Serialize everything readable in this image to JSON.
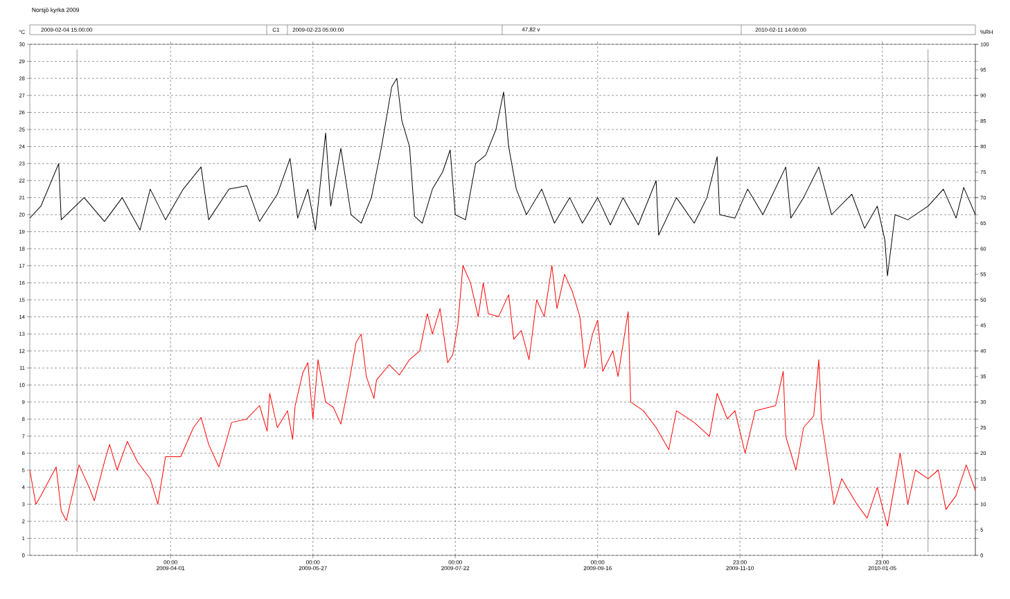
{
  "chart_data": {
    "type": "line",
    "title": "Norsjö kyrka 2009",
    "ylabel": "°C",
    "y2label": "%RH",
    "annotations": [
      "2009-02-04 15:00:00",
      "C1",
      "2009-02-23 05:00:00",
      "47,82 v",
      "2010-02-11 14:00:00"
    ],
    "xlim": [
      "2009-02-04T15:00",
      "2010-02-11T14:00"
    ],
    "xticks": [
      {
        "value": "2009-04-01T00:00",
        "label": "00:00 2009-04-01"
      },
      {
        "value": "2009-05-27T00:00",
        "label": "00:00 2009-05-27"
      },
      {
        "value": "2009-07-22T00:00",
        "label": "00:00 2009-07-22"
      },
      {
        "value": "2009-09-16T00:00",
        "label": "00:00 2009-09-16"
      },
      {
        "value": "2009-11-10T23:00",
        "label": "23:00 2009-11-10"
      },
      {
        "value": "2010-01-05T23:00",
        "label": "23:00 2010-01-05"
      }
    ],
    "ylim": [
      0,
      30
    ],
    "yticks": [
      0,
      1,
      2,
      3,
      4,
      5,
      6,
      7,
      8,
      9,
      10,
      11,
      12,
      13,
      14,
      15,
      16,
      17,
      18,
      19,
      20,
      21,
      22,
      23,
      24,
      25,
      26,
      27,
      28,
      29,
      30
    ],
    "y2lim": [
      0,
      100
    ],
    "y2ticks": [
      0,
      5,
      10,
      15,
      20,
      25,
      30,
      35,
      40,
      45,
      50,
      55,
      60,
      65,
      70,
      75,
      80,
      85,
      90,
      95,
      100
    ],
    "grid": true,
    "marker": "none",
    "line_style": "solid",
    "ref_lines": [
      {
        "axis": "x",
        "value": "2009-02-23T05:00",
        "color": "#000000"
      },
      {
        "axis": "x",
        "value": "2010-01-23T23:00",
        "color": "#000000"
      }
    ],
    "series": [
      {
        "color": "#000000",
        "x": [
          "2009-02-04T15:00",
          "2009-02-09",
          "2009-02-16",
          "2009-02-17",
          "2009-02-26",
          "2009-03-06",
          "2009-03-13",
          "2009-03-20",
          "2009-03-24",
          "2009-03-30",
          "2009-04-06",
          "2009-04-13",
          "2009-04-16",
          "2009-04-24",
          "2009-05-01",
          "2009-05-06",
          "2009-05-13",
          "2009-05-18",
          "2009-05-21",
          "2009-05-25",
          "2009-05-28",
          "2009-06-01",
          "2009-06-03",
          "2009-06-07",
          "2009-06-11",
          "2009-06-15",
          "2009-06-19",
          "2009-06-23",
          "2009-06-27",
          "2009-06-29",
          "2009-07-01",
          "2009-07-04",
          "2009-07-06",
          "2009-07-09",
          "2009-07-13",
          "2009-07-17",
          "2009-07-20",
          "2009-07-22",
          "2009-07-26",
          "2009-07-30",
          "2009-08-03",
          "2009-08-07",
          "2009-08-10",
          "2009-08-12",
          "2009-08-15",
          "2009-08-19",
          "2009-08-25",
          "2009-08-30",
          "2009-09-05",
          "2009-09-10",
          "2009-09-16",
          "2009-09-21",
          "2009-09-26",
          "2009-10-02",
          "2009-10-09",
          "2009-10-10",
          "2009-10-17",
          "2009-10-24",
          "2009-10-29",
          "2009-11-02",
          "2009-11-03",
          "2009-11-09",
          "2009-11-14",
          "2009-11-20",
          "2009-11-29",
          "2009-12-01",
          "2009-12-06",
          "2009-12-12",
          "2009-12-17",
          "2009-12-25",
          "2009-12-30",
          "2010-01-04",
          "2010-01-07",
          "2010-01-08",
          "2010-01-11",
          "2010-01-16",
          "2010-01-24",
          "2010-01-30",
          "2010-02-04",
          "2010-02-07",
          "2010-02-11T14:00"
        ],
        "values": [
          19.8,
          20.5,
          23.0,
          19.7,
          21.0,
          19.6,
          21.0,
          19.1,
          21.5,
          19.7,
          21.5,
          22.8,
          19.7,
          21.5,
          21.7,
          19.6,
          21.2,
          23.3,
          19.8,
          21.5,
          19.1,
          24.8,
          20.5,
          23.9,
          20.0,
          19.5,
          21.0,
          24.0,
          27.5,
          28.0,
          25.5,
          24.0,
          19.9,
          19.5,
          21.5,
          22.5,
          23.8,
          20.0,
          19.7,
          23.0,
          23.5,
          25.0,
          27.2,
          24.0,
          21.5,
          20.0,
          21.5,
          19.5,
          21.0,
          19.5,
          21.0,
          19.4,
          21.0,
          19.4,
          22.0,
          18.8,
          21.0,
          19.5,
          21.0,
          23.4,
          20.0,
          19.8,
          21.5,
          20.0,
          22.8,
          19.8,
          21.0,
          22.8,
          20.0,
          21.2,
          19.2,
          20.5,
          18.5,
          16.4,
          20.0,
          19.7,
          20.5,
          21.5,
          19.8,
          21.6,
          20.0
        ]
      },
      {
        "color": "#ff0000",
        "axis": "y2",
        "x": [
          "2009-02-04T15:00",
          "2009-02-07",
          "2009-02-09",
          "2009-02-15",
          "2009-02-17",
          "2009-02-19",
          "2009-02-22",
          "2009-02-24",
          "2009-02-28",
          "2009-03-02",
          "2009-03-06",
          "2009-03-08",
          "2009-03-11",
          "2009-03-15",
          "2009-03-19",
          "2009-03-24",
          "2009-03-27",
          "2009-03-30",
          "2009-04-05",
          "2009-04-10",
          "2009-04-13",
          "2009-04-16",
          "2009-04-20",
          "2009-04-25",
          "2009-05-01",
          "2009-05-06",
          "2009-05-09",
          "2009-05-10",
          "2009-05-13",
          "2009-05-17",
          "2009-05-19",
          "2009-05-20",
          "2009-05-23",
          "2009-05-25",
          "2009-05-27",
          "2009-05-29",
          "2009-06-01",
          "2009-06-04",
          "2009-06-07",
          "2009-06-10",
          "2009-06-13",
          "2009-06-15",
          "2009-06-17",
          "2009-06-20",
          "2009-06-21",
          "2009-06-26",
          "2009-06-30",
          "2009-07-04",
          "2009-07-08",
          "2009-07-11",
          "2009-07-13",
          "2009-07-16",
          "2009-07-19",
          "2009-07-21",
          "2009-07-23",
          "2009-07-25",
          "2009-07-28",
          "2009-07-31",
          "2009-08-02",
          "2009-08-04",
          "2009-08-08",
          "2009-08-12",
          "2009-08-14",
          "2009-08-17",
          "2009-08-20",
          "2009-08-23",
          "2009-08-26",
          "2009-08-29",
          "2009-08-31",
          "2009-09-03",
          "2009-09-06",
          "2009-09-09",
          "2009-09-11",
          "2009-09-14",
          "2009-09-16",
          "2009-09-18",
          "2009-09-22",
          "2009-09-24",
          "2009-09-28",
          "2009-09-29",
          "2009-10-04",
          "2009-10-09",
          "2009-10-14",
          "2009-10-17",
          "2009-10-24",
          "2009-10-30",
          "2009-11-02",
          "2009-11-06",
          "2009-11-09",
          "2009-11-13",
          "2009-11-17",
          "2009-11-25",
          "2009-11-28",
          "2009-11-29",
          "2009-12-03",
          "2009-12-06",
          "2009-12-10",
          "2009-12-12",
          "2009-12-13",
          "2009-12-16",
          "2009-12-18",
          "2009-12-21",
          "2009-12-27",
          "2009-12-31",
          "2010-01-04",
          "2010-01-08",
          "2010-01-13",
          "2010-01-16",
          "2010-01-19",
          "2010-01-24",
          "2010-01-28",
          "2010-01-31",
          "2010-02-04",
          "2010-02-08",
          "2010-02-11T14:00"
        ],
        "values": [
          16.7,
          10,
          11.7,
          17.3,
          8.7,
          6.8,
          13.3,
          17.7,
          13.3,
          10.7,
          18.3,
          21.7,
          16.7,
          22.3,
          18.3,
          15,
          10,
          19.3,
          19.3,
          25,
          27,
          21.7,
          17.3,
          26,
          26.7,
          29.3,
          24.3,
          31.7,
          25,
          28.3,
          22.7,
          29.3,
          35.7,
          37.7,
          26.7,
          38.3,
          30,
          29,
          25.7,
          33.3,
          41.7,
          43.3,
          35,
          30.7,
          34.3,
          37.3,
          35.3,
          38.3,
          40,
          47.3,
          43.3,
          48.3,
          37.7,
          39.3,
          45,
          56.7,
          53.3,
          46.7,
          53.3,
          47.3,
          46.7,
          51,
          42.3,
          44,
          38.3,
          50,
          46.7,
          56.7,
          48.3,
          55,
          51.7,
          46.7,
          36.7,
          43.3,
          46,
          36,
          40,
          35,
          47.7,
          30,
          28.3,
          25,
          20.7,
          28.3,
          26,
          23.3,
          31.7,
          26.7,
          28.3,
          20,
          28.3,
          29.3,
          36,
          23.3,
          16.7,
          25,
          27.3,
          38.3,
          26.7,
          16.7,
          10,
          15,
          10,
          7.3,
          13.3,
          5.7,
          20,
          10,
          16.7,
          15,
          16.7,
          9,
          11.7,
          17.7,
          12.7
        ]
      }
    ]
  }
}
